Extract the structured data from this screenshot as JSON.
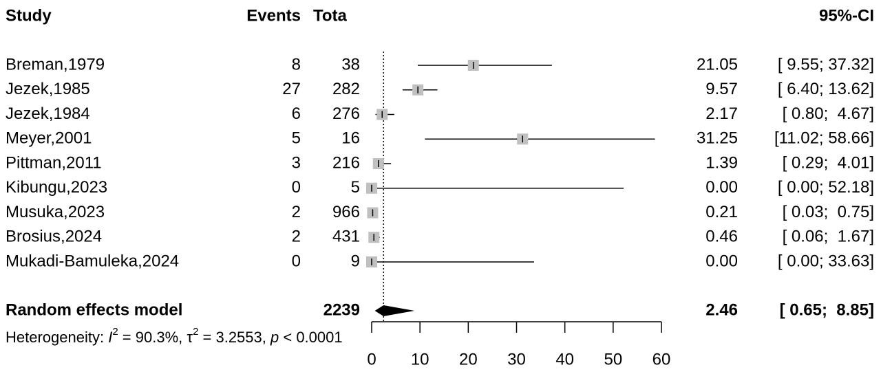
{
  "chart_data": {
    "type": "forest",
    "headers": {
      "study": "Study",
      "events": "Events",
      "total": "Tota",
      "ci": "95%-CI"
    },
    "categories": [
      "Breman,1979",
      "Jezek,1985",
      "Jezek,1984",
      "Meyer,2001",
      "Pittman,2011",
      "Kibungu,2023",
      "Musuka,2023",
      "Brosius,2024",
      "Mukadi-Bamuleka,2024"
    ],
    "events": [
      8,
      27,
      6,
      5,
      3,
      0,
      2,
      2,
      0
    ],
    "totals": [
      38,
      282,
      276,
      16,
      216,
      5,
      966,
      431,
      9
    ],
    "values": [
      21.05,
      9.57,
      2.17,
      31.25,
      1.39,
      0,
      0.21,
      0.46,
      0
    ],
    "value_labels": [
      "21.05",
      "9.57",
      "2.17",
      "31.25",
      "1.39",
      "0.00",
      "0.21",
      "0.46",
      "0.00"
    ],
    "lower": [
      9.55,
      6.4,
      0.8,
      11.02,
      0.29,
      0,
      0.03,
      0.06,
      0
    ],
    "upper": [
      37.32,
      13.62,
      4.67,
      58.66,
      4.01,
      52.18,
      0.75,
      1.67,
      33.63
    ],
    "ci_labels": [
      "[ 9.55; 37.32]",
      "[ 6.40; 13.62]",
      "[ 0.80;  4.67]",
      "[11.02; 58.66]",
      "[ 0.29;  4.01]",
      "[ 0.00; 52.18]",
      "[ 0.03;  0.75]",
      "[ 0.06;  1.67]",
      "[ 0.00; 33.63]"
    ],
    "pooled": {
      "label": "Random effects model",
      "total": 2239,
      "value": 2.46,
      "lower": 0.65,
      "upper": 8.85,
      "value_label": "2.46",
      "ci_label": "[ 0.65;  8.85]"
    },
    "heterogeneity": [
      "Heterogeneity: ",
      "I",
      "2",
      " = 90.3%, ",
      "τ",
      "2",
      " = 3.2553, ",
      "p",
      " < 0.0001"
    ],
    "xlim": [
      0,
      60
    ],
    "xticks": [
      0,
      10,
      20,
      30,
      40,
      50,
      60
    ],
    "square_color": "#c0c0c0",
    "line_color": "#000000"
  }
}
